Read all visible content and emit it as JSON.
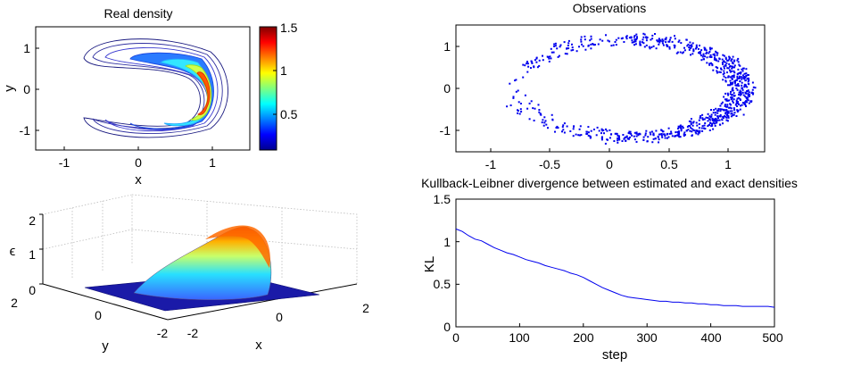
{
  "chart_data": [
    {
      "id": "real-density",
      "type": "contour",
      "title": "Real density",
      "xlabel": "x",
      "ylabel": "y",
      "xlim": [
        -1.4,
        1.4
      ],
      "ylim": [
        -1.4,
        1.4
      ],
      "xticks": [
        "-1",
        "0",
        "1"
      ],
      "yticks": [
        "-1",
        "0",
        "1"
      ],
      "colorbar": {
        "range": [
          0,
          1.5
        ],
        "ticks": [
          "0.5",
          "1",
          "1.5"
        ],
        "colormap": "jet"
      },
      "grid": false
    },
    {
      "id": "observations",
      "type": "scatter",
      "title": "Observations",
      "color": "#0000ee",
      "xlim": [
        -1.3,
        1.3
      ],
      "ylim": [
        -1.3,
        1.3
      ],
      "xticks": [
        "-1",
        "-0.5",
        "0",
        "0.5",
        "1"
      ],
      "yticks": [
        "-1",
        "0",
        "1"
      ],
      "grid": false
    },
    {
      "id": "density-3d",
      "type": "surface",
      "xlabel": "x",
      "ylabel": "y",
      "zlabel": "ϵ",
      "xticks": [
        "-2",
        "0",
        "2"
      ],
      "yticks": [
        "2",
        "0",
        "-2"
      ],
      "zticks": [
        "0",
        "1",
        "2"
      ],
      "colormap": "jet",
      "grid": true
    },
    {
      "id": "kl-divergence",
      "type": "line",
      "title": "Kullback-Leibner divergence between estimated and exact densities",
      "xlabel": "step",
      "ylabel": "KL",
      "xlim": [
        0,
        500
      ],
      "ylim": [
        0,
        1.5
      ],
      "xticks": [
        "0",
        "100",
        "200",
        "300",
        "400",
        "500"
      ],
      "yticks": [
        "0",
        "0.5",
        "1",
        "1.5"
      ],
      "color": "#0000ee",
      "grid": false,
      "series": [
        {
          "x": [
            0,
            10,
            20,
            30,
            40,
            50,
            60,
            70,
            80,
            90,
            100,
            110,
            120,
            130,
            140,
            150,
            160,
            170,
            180,
            190,
            200,
            210,
            220,
            230,
            240,
            250,
            260,
            270,
            280,
            290,
            300,
            310,
            320,
            330,
            340,
            350,
            360,
            370,
            380,
            390,
            400,
            410,
            420,
            430,
            440,
            450,
            460,
            470,
            480,
            490,
            500
          ],
          "values": [
            1.15,
            1.12,
            1.07,
            1.03,
            1.01,
            0.97,
            0.93,
            0.9,
            0.87,
            0.85,
            0.82,
            0.79,
            0.77,
            0.75,
            0.72,
            0.7,
            0.68,
            0.66,
            0.63,
            0.61,
            0.58,
            0.54,
            0.5,
            0.46,
            0.43,
            0.4,
            0.37,
            0.35,
            0.34,
            0.33,
            0.32,
            0.31,
            0.3,
            0.3,
            0.29,
            0.29,
            0.28,
            0.28,
            0.27,
            0.27,
            0.26,
            0.26,
            0.25,
            0.25,
            0.25,
            0.24,
            0.24,
            0.24,
            0.24,
            0.24,
            0.23
          ]
        }
      ]
    }
  ]
}
